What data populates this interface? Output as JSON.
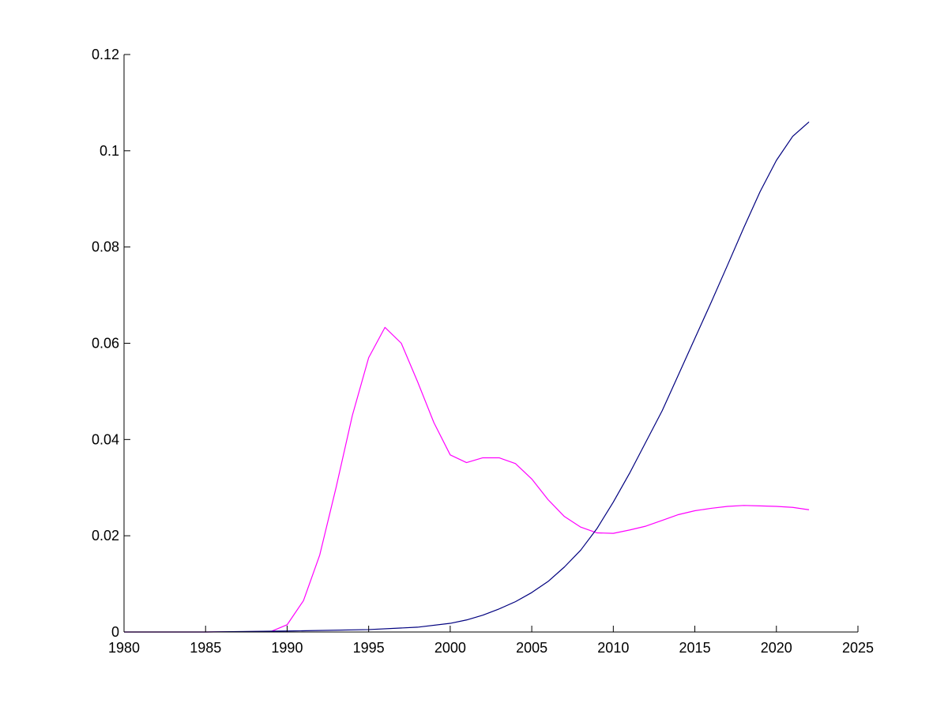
{
  "chart_data": {
    "type": "line",
    "title": "",
    "xlabel": "",
    "ylabel": "",
    "xlim": [
      1980,
      2025
    ],
    "ylim": [
      0,
      0.12
    ],
    "grid": false,
    "legend": "none",
    "x_ticks": [
      {
        "value": 1980,
        "label": "1980"
      },
      {
        "value": 1985,
        "label": "1985"
      },
      {
        "value": 1990,
        "label": "1990"
      },
      {
        "value": 1995,
        "label": "1995"
      },
      {
        "value": 2000,
        "label": "2000"
      },
      {
        "value": 2005,
        "label": "2005"
      },
      {
        "value": 2010,
        "label": "2010"
      },
      {
        "value": 2015,
        "label": "2015"
      },
      {
        "value": 2020,
        "label": "2020"
      },
      {
        "value": 2025,
        "label": "2025"
      }
    ],
    "y_ticks": [
      {
        "value": 0,
        "label": "0"
      },
      {
        "value": 0.02,
        "label": "0.02"
      },
      {
        "value": 0.04,
        "label": "0.04"
      },
      {
        "value": 0.06,
        "label": "0.06"
      },
      {
        "value": 0.08,
        "label": "0.08"
      },
      {
        "value": 0.1,
        "label": "0.1"
      },
      {
        "value": 0.12,
        "label": "0.12"
      }
    ],
    "series": [
      {
        "color": "#ff00ff",
        "x": [
          1980,
          1985,
          1989,
          1990,
          1991,
          1992,
          1993,
          1994,
          1995,
          1996,
          1997,
          1998,
          1999,
          2000,
          2001,
          2002,
          2003,
          2004,
          2005,
          2006,
          2007,
          2008,
          2009,
          2010,
          2011,
          2012,
          2013,
          2014,
          2015,
          2016,
          2017,
          2018,
          2019,
          2020,
          2021,
          2022
        ],
        "y": [
          0,
          0,
          0.0001,
          0.0015,
          0.0065,
          0.016,
          0.03,
          0.045,
          0.057,
          0.0633,
          0.06,
          0.052,
          0.0435,
          0.0368,
          0.0352,
          0.0362,
          0.0362,
          0.035,
          0.0318,
          0.0275,
          0.024,
          0.0218,
          0.0206,
          0.0205,
          0.0212,
          0.022,
          0.0232,
          0.0244,
          0.0252,
          0.0257,
          0.0261,
          0.0263,
          0.0262,
          0.0261,
          0.0259,
          0.0254
        ]
      },
      {
        "color": "#00007f",
        "x": [
          1980,
          1985,
          1990,
          1995,
          1998,
          2000,
          2001,
          2002,
          2003,
          2004,
          2005,
          2006,
          2007,
          2008,
          2009,
          2010,
          2011,
          2012,
          2013,
          2014,
          2015,
          2016,
          2017,
          2018,
          2019,
          2020,
          2021,
          2022
        ],
        "y": [
          0,
          0,
          0.0002,
          0.0005,
          0.001,
          0.0018,
          0.0025,
          0.0035,
          0.0048,
          0.0063,
          0.0082,
          0.0105,
          0.0135,
          0.017,
          0.0215,
          0.027,
          0.033,
          0.0395,
          0.046,
          0.0535,
          0.061,
          0.0685,
          0.0762,
          0.084,
          0.0915,
          0.098,
          0.103,
          0.106
        ]
      }
    ]
  }
}
